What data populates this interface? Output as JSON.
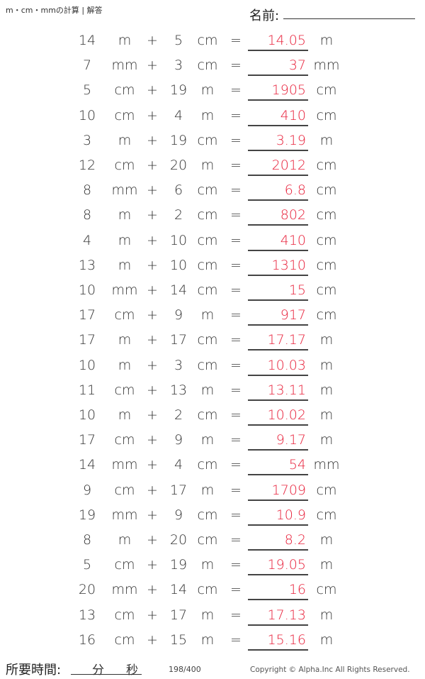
{
  "header": {
    "title": "m・cm・mmの計算 | 解答",
    "name_label": "名前:"
  },
  "problems": [
    {
      "a": "14",
      "ua": "m",
      "b": "5",
      "ub": "cm",
      "answer": "14.05",
      "unit": "m"
    },
    {
      "a": "7",
      "ua": "mm",
      "b": "3",
      "ub": "cm",
      "answer": "37",
      "unit": "mm"
    },
    {
      "a": "5",
      "ua": "cm",
      "b": "19",
      "ub": "m",
      "answer": "1905",
      "unit": "cm"
    },
    {
      "a": "10",
      "ua": "cm",
      "b": "4",
      "ub": "m",
      "answer": "410",
      "unit": "cm"
    },
    {
      "a": "3",
      "ua": "m",
      "b": "19",
      "ub": "cm",
      "answer": "3.19",
      "unit": "m"
    },
    {
      "a": "12",
      "ua": "cm",
      "b": "20",
      "ub": "m",
      "answer": "2012",
      "unit": "cm"
    },
    {
      "a": "8",
      "ua": "mm",
      "b": "6",
      "ub": "cm",
      "answer": "6.8",
      "unit": "cm"
    },
    {
      "a": "8",
      "ua": "m",
      "b": "2",
      "ub": "cm",
      "answer": "802",
      "unit": "cm"
    },
    {
      "a": "4",
      "ua": "m",
      "b": "10",
      "ub": "cm",
      "answer": "410",
      "unit": "cm"
    },
    {
      "a": "13",
      "ua": "m",
      "b": "10",
      "ub": "cm",
      "answer": "1310",
      "unit": "cm"
    },
    {
      "a": "10",
      "ua": "mm",
      "b": "14",
      "ub": "cm",
      "answer": "15",
      "unit": "cm"
    },
    {
      "a": "17",
      "ua": "cm",
      "b": "9",
      "ub": "m",
      "answer": "917",
      "unit": "cm"
    },
    {
      "a": "17",
      "ua": "m",
      "b": "17",
      "ub": "cm",
      "answer": "17.17",
      "unit": "m"
    },
    {
      "a": "10",
      "ua": "m",
      "b": "3",
      "ub": "cm",
      "answer": "10.03",
      "unit": "m"
    },
    {
      "a": "11",
      "ua": "cm",
      "b": "13",
      "ub": "m",
      "answer": "13.11",
      "unit": "m"
    },
    {
      "a": "10",
      "ua": "m",
      "b": "2",
      "ub": "cm",
      "answer": "10.02",
      "unit": "m"
    },
    {
      "a": "17",
      "ua": "cm",
      "b": "9",
      "ub": "m",
      "answer": "9.17",
      "unit": "m"
    },
    {
      "a": "14",
      "ua": "mm",
      "b": "4",
      "ub": "cm",
      "answer": "54",
      "unit": "mm"
    },
    {
      "a": "9",
      "ua": "cm",
      "b": "17",
      "ub": "m",
      "answer": "1709",
      "unit": "cm"
    },
    {
      "a": "19",
      "ua": "mm",
      "b": "9",
      "ub": "cm",
      "answer": "10.9",
      "unit": "cm"
    },
    {
      "a": "8",
      "ua": "m",
      "b": "20",
      "ub": "cm",
      "answer": "8.2",
      "unit": "m"
    },
    {
      "a": "5",
      "ua": "cm",
      "b": "19",
      "ub": "m",
      "answer": "19.05",
      "unit": "m"
    },
    {
      "a": "20",
      "ua": "mm",
      "b": "14",
      "ub": "cm",
      "answer": "16",
      "unit": "cm"
    },
    {
      "a": "13",
      "ua": "cm",
      "b": "17",
      "ub": "m",
      "answer": "17.13",
      "unit": "m"
    },
    {
      "a": "16",
      "ua": "cm",
      "b": "15",
      "ub": "m",
      "answer": "15.16",
      "unit": "m"
    }
  ],
  "symbols": {
    "plus": "+",
    "equals": "="
  },
  "footer": {
    "time_label": "所要時間:",
    "minutes": "分",
    "seconds": "秒",
    "page": "198/400",
    "copyright": "Copyright © Alpha.Inc All Rights Reserved."
  },
  "colors": {
    "answer": "#e8203a"
  }
}
